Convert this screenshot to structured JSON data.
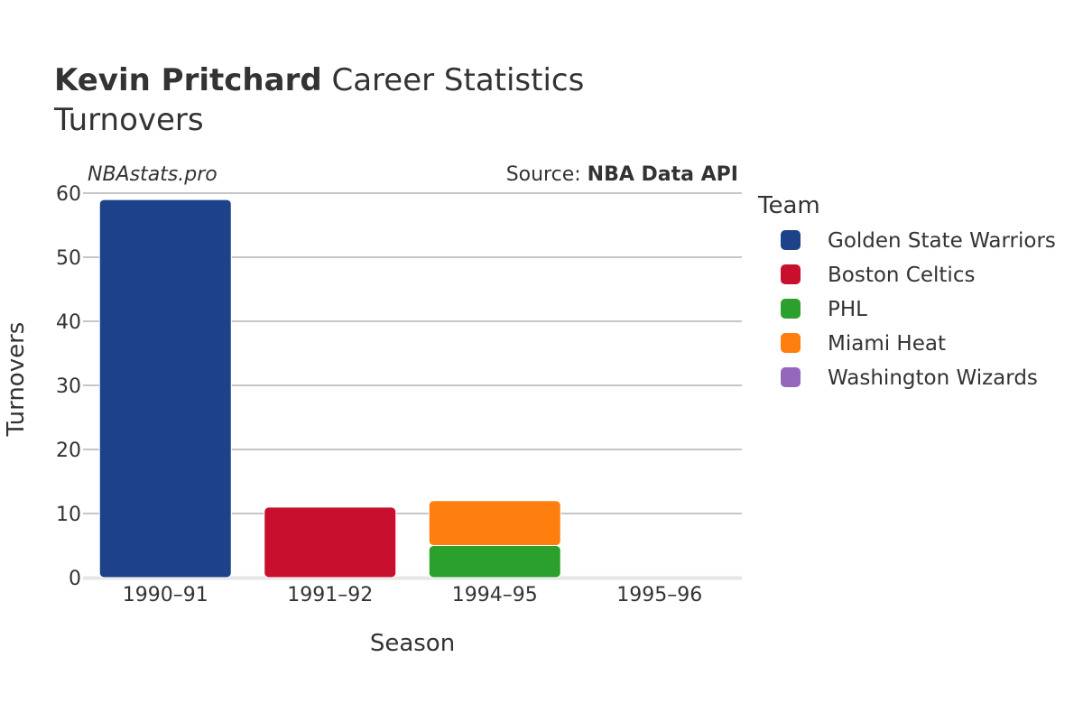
{
  "title": {
    "player": "Kevin Pritchard",
    "rest": " Career Statistics",
    "subtitle": "Turnovers"
  },
  "watermark": "NBAstats.pro",
  "source": {
    "prefix": "Source: ",
    "name": "NBA Data API"
  },
  "chart_data": {
    "type": "bar",
    "stacked": true,
    "categories": [
      "1990–91",
      "1991–92",
      "1994–95",
      "1995–96"
    ],
    "xlabel": "Season",
    "ylabel": "Turnovers",
    "ylim": [
      0,
      60
    ],
    "yticks": [
      0,
      10,
      20,
      30,
      40,
      50,
      60
    ],
    "grid": true,
    "legend_title": "Team",
    "legend_position": "right",
    "series": [
      {
        "name": "Golden State Warriors",
        "color": "#1d428a",
        "values": [
          59,
          0,
          0,
          0
        ]
      },
      {
        "name": "Boston Celtics",
        "color": "#c8102e",
        "values": [
          0,
          11,
          0,
          0
        ]
      },
      {
        "name": "PHL",
        "color": "#2ca02c",
        "values": [
          0,
          0,
          5,
          0
        ]
      },
      {
        "name": "Miami Heat",
        "color": "#ff7f0e",
        "values": [
          0,
          0,
          7,
          0
        ]
      },
      {
        "name": "Washington Wizards",
        "color": "#9467bd",
        "values": [
          0,
          0,
          0,
          0
        ]
      }
    ]
  }
}
